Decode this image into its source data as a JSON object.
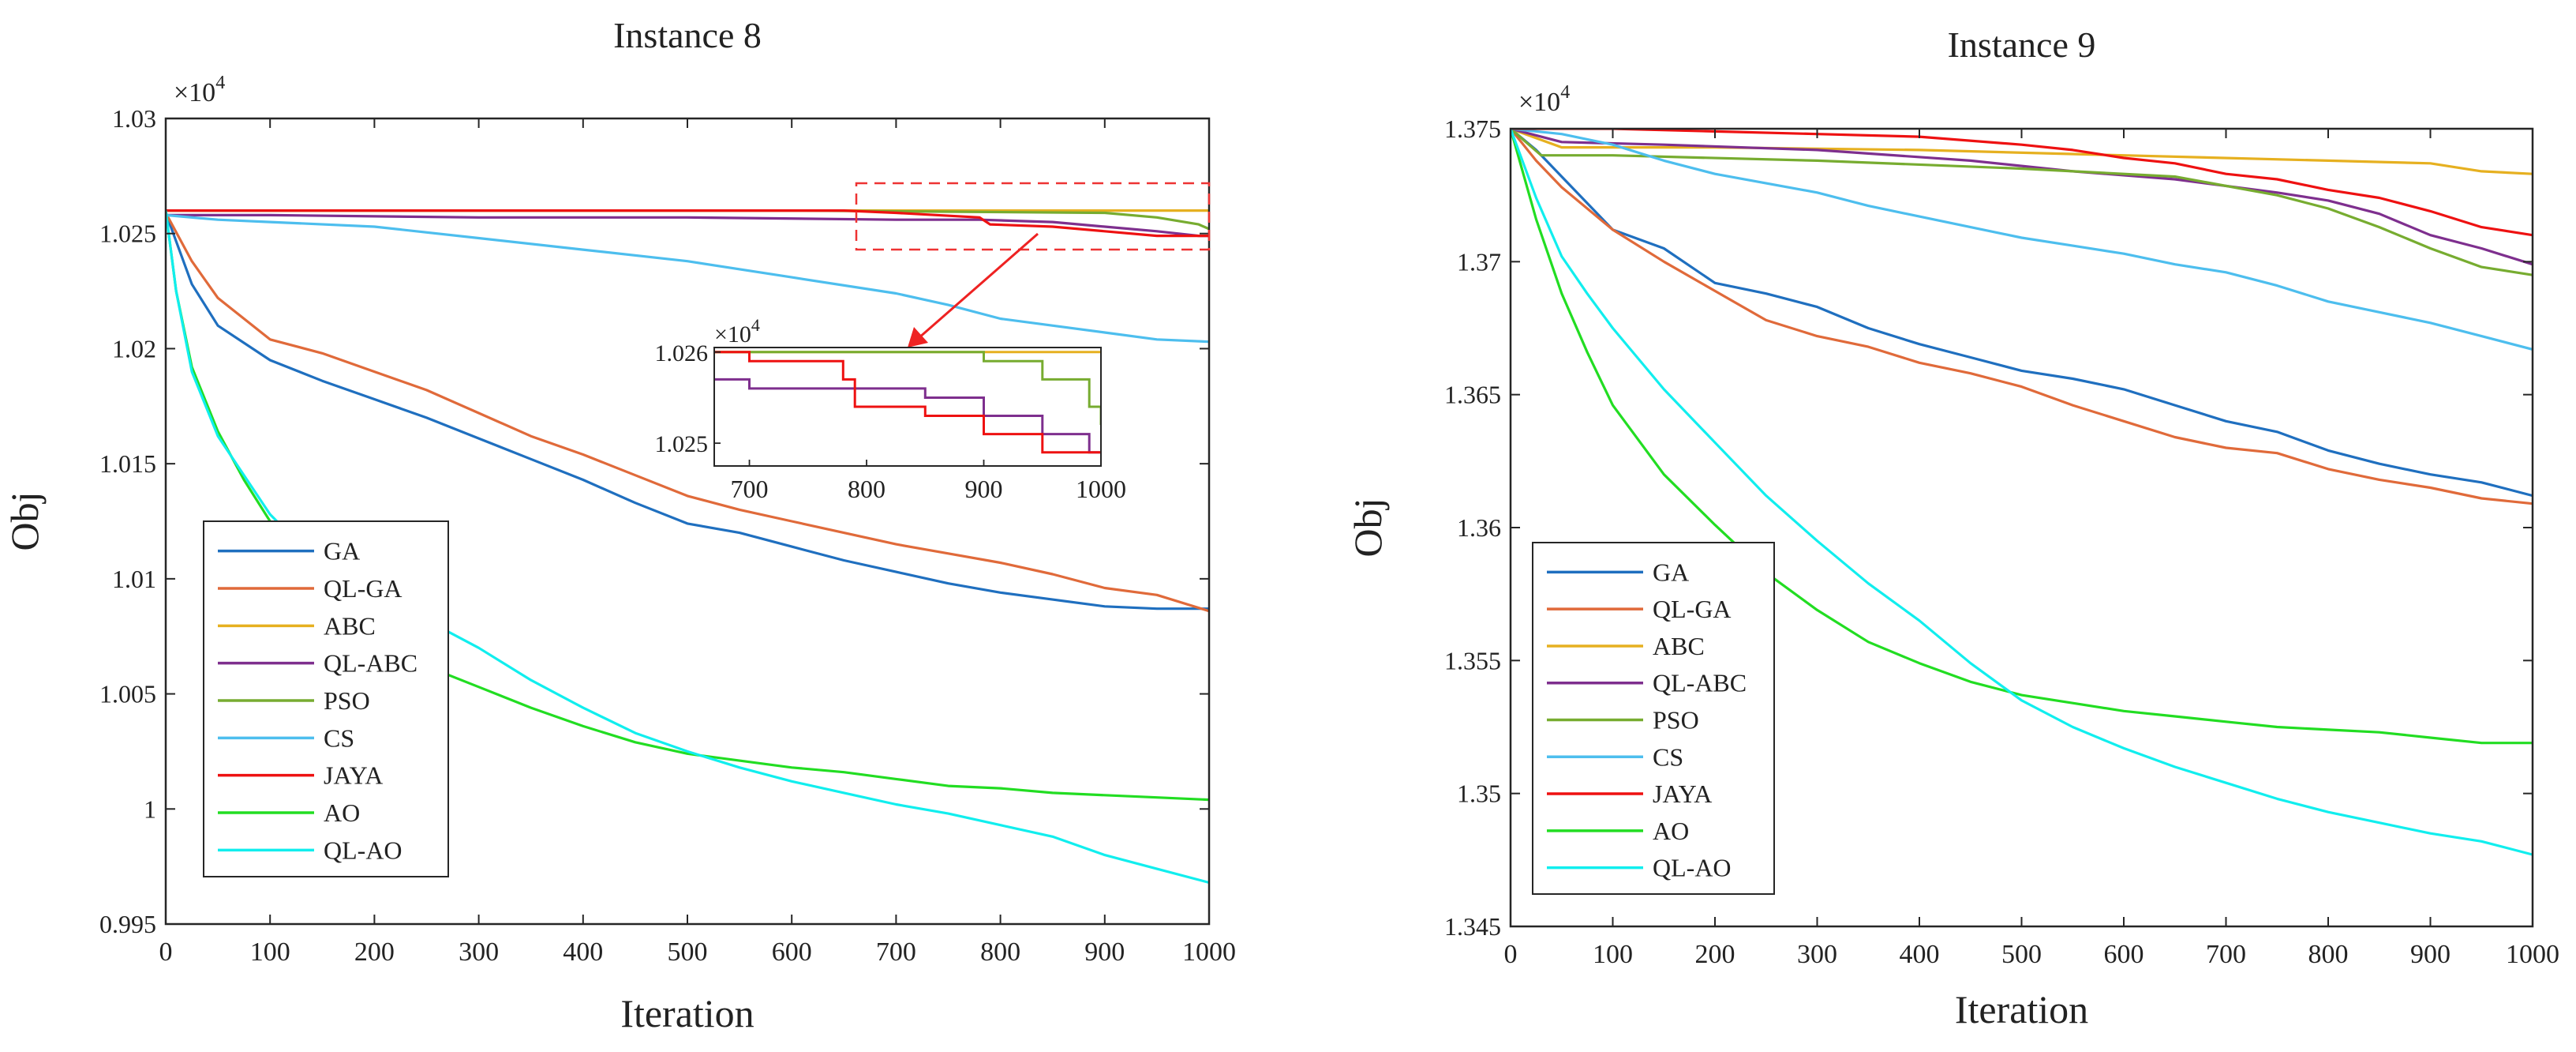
{
  "chart_data": [
    {
      "type": "line",
      "title": "Instance 8",
      "xlabel": "Iteration",
      "ylabel": "Obj",
      "exponent_label": "×10",
      "exponent_power": "4",
      "xlim": [
        0,
        1000
      ],
      "ylim": [
        0.995,
        1.03
      ],
      "xticks": [
        0,
        100,
        200,
        300,
        400,
        500,
        600,
        700,
        800,
        900,
        1000
      ],
      "xtick_labels": [
        "0",
        "100",
        "200",
        "300",
        "400",
        "500",
        "600",
        "700",
        "800",
        "900",
        "1000"
      ],
      "yticks": [
        0.995,
        1.0,
        1.005,
        1.01,
        1.015,
        1.02,
        1.025,
        1.03
      ],
      "ytick_labels": [
        "0.995",
        "1",
        "1.005",
        "1.01",
        "1.015",
        "1.02",
        "1.025",
        "1.03"
      ],
      "legend_position": "bottom-left",
      "series": [
        {
          "name": "GA",
          "color": "#1f6fbf",
          "x": [
            0,
            25,
            50,
            100,
            150,
            200,
            250,
            300,
            350,
            400,
            450,
            500,
            550,
            600,
            650,
            700,
            750,
            800,
            850,
            900,
            950,
            1000
          ],
          "y": [
            1.0259,
            1.0228,
            1.021,
            1.0195,
            1.0186,
            1.0178,
            1.017,
            1.0161,
            1.0152,
            1.0143,
            1.0133,
            1.0124,
            1.012,
            1.0114,
            1.0108,
            1.0103,
            1.0098,
            1.0094,
            1.0091,
            1.0088,
            1.0087,
            1.0087
          ]
        },
        {
          "name": "QL-GA",
          "color": "#e06a3a",
          "x": [
            0,
            25,
            50,
            100,
            150,
            200,
            250,
            300,
            350,
            400,
            450,
            500,
            550,
            600,
            650,
            700,
            750,
            800,
            850,
            900,
            950,
            1000
          ],
          "y": [
            1.0259,
            1.0238,
            1.0222,
            1.0204,
            1.0198,
            1.019,
            1.0182,
            1.0172,
            1.0162,
            1.0154,
            1.0145,
            1.0136,
            1.013,
            1.0125,
            1.012,
            1.0115,
            1.0111,
            1.0107,
            1.0102,
            1.0096,
            1.0093,
            1.0086
          ]
        },
        {
          "name": "ABC",
          "color": "#e6b020",
          "x": [
            0,
            200,
            400,
            600,
            800,
            1000
          ],
          "y": [
            1.026,
            1.026,
            1.026,
            1.026,
            1.026,
            1.026
          ]
        },
        {
          "name": "QL-ABC",
          "color": "#7e2f8e",
          "x": [
            0,
            100,
            300,
            500,
            700,
            780,
            850,
            900,
            950,
            990,
            1000
          ],
          "y": [
            1.0258,
            1.0258,
            1.0257,
            1.0257,
            1.0256,
            1.0256,
            1.0255,
            1.0253,
            1.0251,
            1.0249,
            1.0249
          ]
        },
        {
          "name": "PSO",
          "color": "#77ac30",
          "x": [
            0,
            300,
            600,
            900,
            950,
            990,
            1000
          ],
          "y": [
            1.026,
            1.026,
            1.026,
            1.0259,
            1.0257,
            1.0254,
            1.0252
          ]
        },
        {
          "name": "CS",
          "color": "#4dbeee",
          "x": [
            0,
            50,
            100,
            200,
            300,
            400,
            500,
            600,
            700,
            750,
            800,
            900,
            950,
            1000
          ],
          "y": [
            1.0258,
            1.0256,
            1.0255,
            1.0253,
            1.0248,
            1.0243,
            1.0238,
            1.0231,
            1.0224,
            1.0219,
            1.0213,
            1.0207,
            1.0204,
            1.0203
          ]
        },
        {
          "name": "JAYA",
          "color": "#ee1111",
          "x": [
            0,
            400,
            650,
            700,
            780,
            790,
            850,
            900,
            950,
            1000
          ],
          "y": [
            1.026,
            1.026,
            1.026,
            1.0259,
            1.0257,
            1.0254,
            1.0253,
            1.0251,
            1.0249,
            1.0249
          ]
        },
        {
          "name": "AO",
          "color": "#22dd22",
          "x": [
            0,
            10,
            25,
            50,
            75,
            100,
            150,
            200,
            250,
            300,
            350,
            400,
            450,
            500,
            550,
            600,
            650,
            700,
            750,
            800,
            850,
            900,
            950,
            1000
          ],
          "y": [
            1.026,
            1.0225,
            1.0192,
            1.0164,
            1.0143,
            1.0125,
            1.0095,
            1.0076,
            1.0062,
            1.0053,
            1.0044,
            1.0036,
            1.0029,
            1.0024,
            1.0021,
            1.0018,
            1.0016,
            1.0013,
            1.001,
            1.0009,
            1.0007,
            1.0006,
            1.0005,
            1.0004
          ]
        },
        {
          "name": "QL-AO",
          "color": "#11eeee",
          "x": [
            0,
            10,
            25,
            50,
            75,
            100,
            150,
            200,
            250,
            300,
            350,
            400,
            450,
            500,
            550,
            600,
            650,
            700,
            750,
            800,
            850,
            900,
            950,
            1000
          ],
          "y": [
            1.026,
            1.0225,
            1.019,
            1.0162,
            1.0145,
            1.0128,
            1.0105,
            1.0091,
            1.0082,
            1.007,
            1.0056,
            1.0044,
            1.0033,
            1.0025,
            1.0018,
            1.0012,
            1.0007,
            1.0002,
            0.9998,
            0.9993,
            0.9988,
            0.998,
            0.9974,
            0.9968
          ]
        }
      ],
      "inset": {
        "exponent_label": "×10",
        "exponent_power": "4",
        "xlim": [
          670,
          1000
        ],
        "ylim": [
          1.02475,
          1.02605
        ],
        "xticks": [
          700,
          800,
          900,
          1000
        ],
        "xtick_labels": [
          "700",
          "800",
          "900",
          "1000"
        ],
        "yticks": [
          1.025,
          1.026
        ],
        "ytick_labels": [
          "1.025",
          "1.026"
        ]
      }
    },
    {
      "type": "line",
      "title": "Instance 9",
      "xlabel": "Iteration",
      "ylabel": "Obj",
      "exponent_label": "×10",
      "exponent_power": "4",
      "xlim": [
        0,
        1000
      ],
      "ylim": [
        1.345,
        1.375
      ],
      "xticks": [
        0,
        100,
        200,
        300,
        400,
        500,
        600,
        700,
        800,
        900,
        1000
      ],
      "xtick_labels": [
        "0",
        "100",
        "200",
        "300",
        "400",
        "500",
        "600",
        "700",
        "800",
        "900",
        "1000"
      ],
      "yticks": [
        1.345,
        1.35,
        1.355,
        1.36,
        1.365,
        1.37,
        1.375
      ],
      "ytick_labels": [
        "1.345",
        "1.35",
        "1.355",
        "1.36",
        "1.365",
        "1.37",
        "1.375"
      ],
      "legend_position": "bottom-left",
      "series": [
        {
          "name": "GA",
          "color": "#1f6fbf",
          "x": [
            0,
            25,
            50,
            100,
            150,
            200,
            250,
            300,
            350,
            400,
            450,
            500,
            550,
            600,
            650,
            700,
            750,
            800,
            850,
            900,
            950,
            1000
          ],
          "y": [
            1.375,
            1.3742,
            1.3732,
            1.3712,
            1.3705,
            1.3692,
            1.3688,
            1.3683,
            1.3675,
            1.3669,
            1.3664,
            1.3659,
            1.3656,
            1.3652,
            1.3646,
            1.364,
            1.3636,
            1.3629,
            1.3624,
            1.362,
            1.3617,
            1.3612
          ]
        },
        {
          "name": "QL-GA",
          "color": "#e06a3a",
          "x": [
            0,
            25,
            50,
            100,
            150,
            200,
            250,
            300,
            350,
            400,
            450,
            500,
            550,
            600,
            650,
            700,
            750,
            800,
            850,
            900,
            950,
            1000
          ],
          "y": [
            1.375,
            1.3738,
            1.3728,
            1.3712,
            1.37,
            1.3689,
            1.3678,
            1.3672,
            1.3668,
            1.3662,
            1.3658,
            1.3653,
            1.3646,
            1.364,
            1.3634,
            1.363,
            1.3628,
            1.3622,
            1.3618,
            1.3615,
            1.3611,
            1.3609
          ]
        },
        {
          "name": "ABC",
          "color": "#e6b020",
          "x": [
            0,
            50,
            200,
            400,
            600,
            800,
            900,
            950,
            1000
          ],
          "y": [
            1.375,
            1.3743,
            1.3743,
            1.3742,
            1.374,
            1.3738,
            1.3737,
            1.3734,
            1.3733
          ]
        },
        {
          "name": "QL-ABC",
          "color": "#7e2f8e",
          "x": [
            0,
            50,
            150,
            300,
            450,
            550,
            650,
            750,
            800,
            850,
            900,
            950,
            1000
          ],
          "y": [
            1.375,
            1.3745,
            1.3744,
            1.3742,
            1.3738,
            1.3734,
            1.3731,
            1.3726,
            1.3723,
            1.3718,
            1.371,
            1.3705,
            1.3699
          ]
        },
        {
          "name": "PSO",
          "color": "#77ac30",
          "x": [
            0,
            30,
            100,
            300,
            500,
            650,
            750,
            800,
            850,
            900,
            950,
            1000
          ],
          "y": [
            1.375,
            1.374,
            1.374,
            1.3738,
            1.3735,
            1.3732,
            1.3725,
            1.372,
            1.3713,
            1.3705,
            1.3698,
            1.3695
          ]
        },
        {
          "name": "CS",
          "color": "#4dbeee",
          "x": [
            0,
            50,
            100,
            150,
            200,
            300,
            350,
            400,
            450,
            500,
            550,
            600,
            650,
            700,
            750,
            800,
            850,
            900,
            950,
            1000
          ],
          "y": [
            1.375,
            1.3748,
            1.3744,
            1.3738,
            1.3733,
            1.3726,
            1.3721,
            1.3717,
            1.3713,
            1.3709,
            1.3706,
            1.3703,
            1.3699,
            1.3696,
            1.3691,
            1.3685,
            1.3681,
            1.3677,
            1.3672,
            1.3667
          ]
        },
        {
          "name": "JAYA",
          "color": "#ee1111",
          "x": [
            0,
            100,
            200,
            300,
            400,
            500,
            550,
            600,
            650,
            700,
            750,
            800,
            850,
            900,
            950,
            1000
          ],
          "y": [
            1.375,
            1.375,
            1.3749,
            1.3748,
            1.3747,
            1.3744,
            1.3742,
            1.3739,
            1.3737,
            1.3733,
            1.3731,
            1.3727,
            1.3724,
            1.3719,
            1.3713,
            1.371
          ]
        },
        {
          "name": "AO",
          "color": "#22dd22",
          "x": [
            0,
            25,
            50,
            75,
            100,
            150,
            200,
            250,
            300,
            350,
            400,
            450,
            500,
            550,
            600,
            650,
            700,
            750,
            800,
            850,
            900,
            950,
            1000
          ],
          "y": [
            1.375,
            1.3716,
            1.3688,
            1.3666,
            1.3646,
            1.362,
            1.3601,
            1.3583,
            1.3569,
            1.3557,
            1.3549,
            1.3542,
            1.3537,
            1.3534,
            1.3531,
            1.3529,
            1.3527,
            1.3525,
            1.3524,
            1.3523,
            1.3521,
            1.3519,
            1.3519
          ]
        },
        {
          "name": "QL-AO",
          "color": "#11eeee",
          "x": [
            0,
            25,
            50,
            75,
            100,
            150,
            200,
            250,
            300,
            350,
            400,
            450,
            500,
            550,
            600,
            650,
            700,
            750,
            800,
            850,
            900,
            950,
            1000
          ],
          "y": [
            1.375,
            1.3724,
            1.3702,
            1.3688,
            1.3675,
            1.3652,
            1.3632,
            1.3612,
            1.3595,
            1.3579,
            1.3565,
            1.3549,
            1.3535,
            1.3525,
            1.3517,
            1.351,
            1.3504,
            1.3498,
            1.3493,
            1.3489,
            1.3485,
            1.3482,
            1.3477
          ]
        }
      ]
    }
  ]
}
